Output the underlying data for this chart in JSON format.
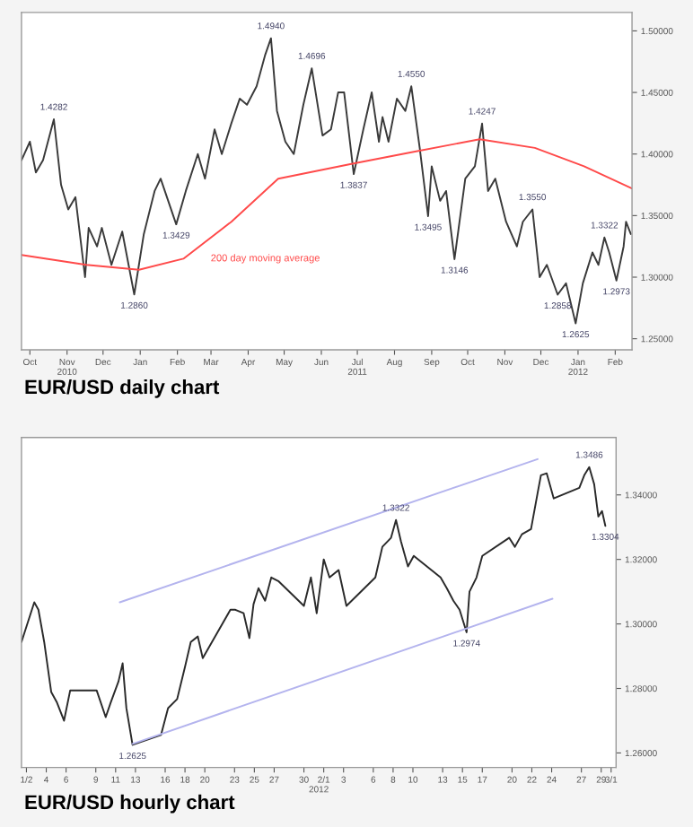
{
  "chart_data": [
    {
      "type": "line",
      "title": "EUR/USD daily chart",
      "xlim": [
        "2010-10-08",
        "2012-02-29"
      ],
      "xticks": [
        {
          "value": "2010-10-15",
          "label": "Oct"
        },
        {
          "value": "2010-11-15",
          "label": "Nov\n2010"
        },
        {
          "value": "2010-12-15",
          "label": "Dec"
        },
        {
          "value": "2011-01-15",
          "label": "Jan"
        },
        {
          "value": "2011-02-15",
          "label": "Feb"
        },
        {
          "value": "2011-03-15",
          "label": "Mar"
        },
        {
          "value": "2011-04-15",
          "label": "Apr"
        },
        {
          "value": "2011-05-15",
          "label": "May"
        },
        {
          "value": "2011-06-15",
          "label": "Jun"
        },
        {
          "value": "2011-07-15",
          "label": "Jul\n2011"
        },
        {
          "value": "2011-08-15",
          "label": "Aug"
        },
        {
          "value": "2011-09-15",
          "label": "Sep"
        },
        {
          "value": "2011-10-15",
          "label": "Oct"
        },
        {
          "value": "2011-11-15",
          "label": "Nov"
        },
        {
          "value": "2011-12-15",
          "label": "Dec"
        },
        {
          "value": "2012-01-15",
          "label": "Jan\n2012"
        },
        {
          "value": "2012-02-15",
          "label": "Feb"
        }
      ],
      "ylim": [
        1.241,
        1.515
      ],
      "yticks": [
        {
          "value": 1.25,
          "label": "1.25000"
        },
        {
          "value": 1.3,
          "label": "1.30000"
        },
        {
          "value": 1.35,
          "label": "1.35000"
        },
        {
          "value": 1.4,
          "label": "1.40000"
        },
        {
          "value": 1.45,
          "label": "1.45000"
        },
        {
          "value": 1.5,
          "label": "1.50000"
        }
      ],
      "grid": false,
      "legend": false,
      "marker": "none",
      "line_style": "solid",
      "series": [
        {
          "color": "#3a3a3a",
          "x": [
            "2010-10-08",
            "2010-10-15",
            "2010-10-20",
            "2010-10-26",
            "2010-11-04",
            "2010-11-10",
            "2010-11-16",
            "2010-11-22",
            "2010-11-30",
            "2010-12-03",
            "2010-12-10",
            "2010-12-14",
            "2010-12-22",
            "2010-12-31",
            "2011-01-10",
            "2011-01-18",
            "2011-01-27",
            "2011-02-01",
            "2011-02-14",
            "2011-02-22",
            "2011-03-04",
            "2011-03-10",
            "2011-03-18",
            "2011-03-24",
            "2011-04-01",
            "2011-04-08",
            "2011-04-14",
            "2011-04-22",
            "2011-04-29",
            "2011-05-04",
            "2011-05-09",
            "2011-05-16",
            "2011-05-23",
            "2011-05-31",
            "2011-06-07",
            "2011-06-16",
            "2011-06-23",
            "2011-06-29",
            "2011-07-04",
            "2011-07-12",
            "2011-07-20",
            "2011-07-27",
            "2011-08-02",
            "2011-08-05",
            "2011-08-10",
            "2011-08-17",
            "2011-08-24",
            "2011-08-29",
            "2011-09-05",
            "2011-09-12",
            "2011-09-15",
            "2011-09-22",
            "2011-09-27",
            "2011-10-04",
            "2011-10-13",
            "2011-10-21",
            "2011-10-27",
            "2011-11-01",
            "2011-11-07",
            "2011-11-16",
            "2011-11-25",
            "2011-11-30",
            "2011-12-08",
            "2011-12-14",
            "2011-12-20",
            "2011-12-29",
            "2012-01-05",
            "2012-01-13",
            "2012-01-19",
            "2012-01-27",
            "2012-02-01",
            "2012-02-06",
            "2012-02-10",
            "2012-02-16",
            "2012-02-22",
            "2012-02-24",
            "2012-02-28"
          ],
          "values": [
            1.395,
            1.41,
            1.385,
            1.395,
            1.4282,
            1.375,
            1.355,
            1.365,
            1.3,
            1.34,
            1.325,
            1.34,
            1.31,
            1.337,
            1.286,
            1.335,
            1.37,
            1.38,
            1.3429,
            1.37,
            1.4,
            1.38,
            1.42,
            1.4,
            1.425,
            1.445,
            1.44,
            1.455,
            1.48,
            1.494,
            1.435,
            1.41,
            1.4,
            1.44,
            1.4696,
            1.415,
            1.42,
            1.45,
            1.45,
            1.3837,
            1.42,
            1.45,
            1.41,
            1.43,
            1.41,
            1.445,
            1.435,
            1.455,
            1.405,
            1.3495,
            1.39,
            1.362,
            1.37,
            1.3146,
            1.38,
            1.39,
            1.4247,
            1.37,
            1.38,
            1.345,
            1.325,
            1.345,
            1.355,
            1.3,
            1.31,
            1.2858,
            1.295,
            1.2625,
            1.295,
            1.32,
            1.31,
            1.3322,
            1.32,
            1.2973,
            1.325,
            1.345,
            1.335
          ]
        },
        {
          "color": "#ff4a4a",
          "x": [
            "2010-10-08",
            "2010-12-01",
            "2011-01-14",
            "2011-02-20",
            "2011-04-01",
            "2011-05-10",
            "2011-07-10",
            "2011-09-01",
            "2011-10-25",
            "2011-12-10",
            "2012-01-20",
            "2012-02-29"
          ],
          "values": [
            1.318,
            1.31,
            1.306,
            1.315,
            1.345,
            1.38,
            1.392,
            1.402,
            1.412,
            1.405,
            1.39,
            1.372
          ]
        }
      ],
      "annotations": [
        {
          "text": "1.4282",
          "x": "2010-11-04",
          "y": 1.4282
        },
        {
          "text": "1.2860",
          "x": "2011-01-10",
          "y": 1.286
        },
        {
          "text": "1.3429",
          "x": "2011-02-14",
          "y": 1.3429
        },
        {
          "text": "1.4940",
          "x": "2011-05-04",
          "y": 1.494
        },
        {
          "text": "1.4696",
          "x": "2011-06-07",
          "y": 1.4696
        },
        {
          "text": "1.3837",
          "x": "2011-07-12",
          "y": 1.3837
        },
        {
          "text": "1.4550",
          "x": "2011-08-29",
          "y": 1.455
        },
        {
          "text": "1.3495",
          "x": "2011-09-12",
          "y": 1.3495
        },
        {
          "text": "1.3146",
          "x": "2011-10-04",
          "y": 1.3146
        },
        {
          "text": "1.4247",
          "x": "2011-10-27",
          "y": 1.4247
        },
        {
          "text": "1.3550",
          "x": "2011-12-08",
          "y": 1.355
        },
        {
          "text": "1.2858",
          "x": "2011-12-29",
          "y": 1.2858
        },
        {
          "text": "1.2625",
          "x": "2012-01-13",
          "y": 1.2625
        },
        {
          "text": "1.3322",
          "x": "2012-02-06",
          "y": 1.3322
        },
        {
          "text": "1.2973",
          "x": "2012-02-16",
          "y": 1.2973
        },
        "200 day moving average"
      ]
    },
    {
      "type": "line",
      "title": "EUR/USD hourly chart",
      "xlabel": "2012",
      "xlim": [
        "2012-01-02T00:00",
        "2012-03-02T00:00"
      ],
      "xticks": [
        {
          "value": "2012-01-02T12:00",
          "label": "1/2"
        },
        {
          "value": "2012-01-04T12:00",
          "label": "4"
        },
        {
          "value": "2012-01-06T12:00",
          "label": "6"
        },
        {
          "value": "2012-01-09T12:00",
          "label": "9"
        },
        {
          "value": "2012-01-11T12:00",
          "label": "11"
        },
        {
          "value": "2012-01-13T12:00",
          "label": "13"
        },
        {
          "value": "2012-01-16T12:00",
          "label": "16"
        },
        {
          "value": "2012-01-18T12:00",
          "label": "18"
        },
        {
          "value": "2012-01-20T12:00",
          "label": "20"
        },
        {
          "value": "2012-01-23T12:00",
          "label": "23"
        },
        {
          "value": "2012-01-25T12:00",
          "label": "25"
        },
        {
          "value": "2012-01-27T12:00",
          "label": "27"
        },
        {
          "value": "2012-01-30T12:00",
          "label": "30"
        },
        {
          "value": "2012-02-01T12:00",
          "label": "2/1"
        },
        {
          "value": "2012-02-03T12:00",
          "label": "3"
        },
        {
          "value": "2012-02-06T12:00",
          "label": "6"
        },
        {
          "value": "2012-02-08T12:00",
          "label": "8"
        },
        {
          "value": "2012-02-10T12:00",
          "label": "10"
        },
        {
          "value": "2012-02-13T12:00",
          "label": "13"
        },
        {
          "value": "2012-02-15T12:00",
          "label": "15"
        },
        {
          "value": "2012-02-17T12:00",
          "label": "17"
        },
        {
          "value": "2012-02-20T12:00",
          "label": "20"
        },
        {
          "value": "2012-02-22T12:00",
          "label": "22"
        },
        {
          "value": "2012-02-24T12:00",
          "label": "24"
        },
        {
          "value": "2012-02-27T12:00",
          "label": "27"
        },
        {
          "value": "2012-02-29T12:00",
          "label": "29"
        },
        {
          "value": "2012-03-01T12:00",
          "label": "3/1"
        }
      ],
      "ylim": [
        1.2555,
        1.3578
      ],
      "yticks": [
        {
          "value": 1.26,
          "label": "1.26000"
        },
        {
          "value": 1.28,
          "label": "1.28000"
        },
        {
          "value": 1.3,
          "label": "1.30000"
        },
        {
          "value": 1.32,
          "label": "1.32000"
        },
        {
          "value": 1.34,
          "label": "1.34000"
        }
      ],
      "grid": false,
      "legend": false,
      "marker": "none",
      "line_style": "solid",
      "series": [
        {
          "color": "#2a2a2a",
          "x": [
            "2012-01-02T00:00",
            "2012-01-03T07:00",
            "2012-01-03T17:00",
            "2012-01-04T07:00",
            "2012-01-05T00:00",
            "2012-01-05T14:00",
            "2012-01-06T07:00",
            "2012-01-06T22:00",
            "2012-01-09T14:00",
            "2012-01-10T12:00",
            "2012-01-11T00:00",
            "2012-01-11T19:00",
            "2012-01-12T05:00",
            "2012-01-12T14:00",
            "2012-01-13T05:00",
            "2012-01-16T02:00",
            "2012-01-16T19:00",
            "2012-01-17T17:00",
            "2012-01-18T12:00",
            "2012-01-19T02:00",
            "2012-01-19T19:00",
            "2012-01-20T07:00",
            "2012-01-23T02:00",
            "2012-01-23T14:00",
            "2012-01-24T10:00",
            "2012-01-25T00:00",
            "2012-01-25T10:00",
            "2012-01-25T22:00",
            "2012-01-26T14:00",
            "2012-01-27T05:00",
            "2012-01-27T22:00",
            "2012-01-30T12:00",
            "2012-01-31T05:00",
            "2012-01-31T19:00",
            "2012-02-01T12:00",
            "2012-02-02T02:00",
            "2012-02-03T00:00",
            "2012-02-03T19:00",
            "2012-02-06T17:00",
            "2012-02-07T10:00",
            "2012-02-08T07:00",
            "2012-02-08T19:00",
            "2012-02-09T07:00",
            "2012-02-10T00:00",
            "2012-02-10T14:00",
            "2012-02-13T07:00",
            "2012-02-13T22:00",
            "2012-02-14T14:00",
            "2012-02-15T05:00",
            "2012-02-15T22:00",
            "2012-02-16T05:00",
            "2012-02-16T22:00",
            "2012-02-17T12:00",
            "2012-02-20T05:00",
            "2012-02-20T19:00",
            "2012-02-21T12:00",
            "2012-02-22T10:00",
            "2012-02-23T02:00",
            "2012-02-23T10:00",
            "2012-02-24T00:00",
            "2012-02-24T17:00",
            "2012-02-27T07:00",
            "2012-02-27T19:00",
            "2012-02-28T07:00",
            "2012-02-28T19:00",
            "2012-02-29T05:00",
            "2012-02-29T14:00",
            "2012-02-29T22:00"
          ],
          "values": [
            1.2944,
            1.3067,
            1.3044,
            1.2944,
            1.2789,
            1.2756,
            1.27,
            1.2794,
            1.2794,
            1.2711,
            1.2756,
            1.2822,
            1.2878,
            1.2739,
            1.2625,
            1.2656,
            1.2739,
            1.2767,
            1.2867,
            1.2944,
            1.2961,
            1.2894,
            1.3044,
            1.3044,
            1.3033,
            1.2956,
            1.3061,
            1.3111,
            1.3072,
            1.3144,
            1.3133,
            1.3056,
            1.3144,
            1.3033,
            1.32,
            1.3144,
            1.3167,
            1.3056,
            1.3144,
            1.3239,
            1.3267,
            1.3322,
            1.3256,
            1.3178,
            1.3211,
            1.3144,
            1.3111,
            1.3072,
            1.3044,
            1.2974,
            1.31,
            1.3144,
            1.3211,
            1.3267,
            1.3239,
            1.3278,
            1.3294,
            1.3406,
            1.3461,
            1.3467,
            1.3389,
            1.3422,
            1.3461,
            1.3486,
            1.3433,
            1.3333,
            1.335,
            1.3304
          ]
        },
        {
          "color": "#b4b4ee",
          "x": [
            "2012-01-11T22:00",
            "2012-02-23T02:00"
          ],
          "values": [
            1.3067,
            1.3511
          ]
        },
        {
          "color": "#b4b4ee",
          "x": [
            "2012-01-13T05:00",
            "2012-02-24T14:00"
          ],
          "values": [
            1.2628,
            1.3078
          ]
        }
      ],
      "annotations": [
        {
          "text": "1.2625",
          "x": "2012-01-13T05:00",
          "y": 1.2625
        },
        {
          "text": "1.3322",
          "x": "2012-02-08T19:00",
          "y": 1.3322
        },
        {
          "text": "1.2974",
          "x": "2012-02-15T22:00",
          "y": 1.2974
        },
        {
          "text": "1.3486",
          "x": "2012-02-28T07:00",
          "y": 1.3486
        },
        {
          "text": "1.3304",
          "x": "2012-02-29T22:00",
          "y": 1.3304
        }
      ]
    }
  ]
}
